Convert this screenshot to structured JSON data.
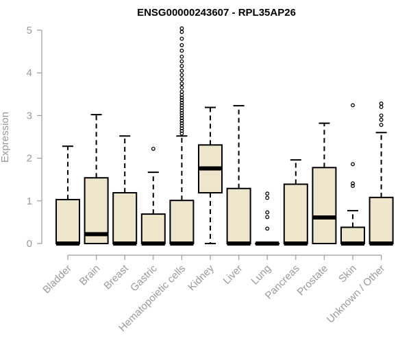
{
  "chart_data": {
    "type": "box",
    "title": "ENSG00000243607 - RPL35AP26",
    "ylabel": "Expression",
    "xlabel": "",
    "ylim": [
      0,
      5
    ],
    "yticks": [
      0,
      1,
      2,
      3,
      4,
      5
    ],
    "box_color": "#ede6cc",
    "categories": [
      "Bladder",
      "Brain",
      "Breast",
      "Gastric",
      "Hematopoietic cells",
      "Kidney",
      "Liver",
      "Lung",
      "Pancreas",
      "Prostate",
      "Skin",
      "Unknown / Other"
    ],
    "boxes": [
      {
        "category": "Bladder",
        "whisker_low": 0,
        "q1": 0,
        "median": 0,
        "q3": 1.03,
        "whisker_high": 2.28,
        "outliers": []
      },
      {
        "category": "Brain",
        "whisker_low": 0,
        "q1": 0,
        "median": 0.22,
        "q3": 1.54,
        "whisker_high": 3.02,
        "outliers": []
      },
      {
        "category": "Breast",
        "whisker_low": 0,
        "q1": 0,
        "median": 0,
        "q3": 1.19,
        "whisker_high": 2.52,
        "outliers": []
      },
      {
        "category": "Gastric",
        "whisker_low": 0,
        "q1": 0,
        "median": 0,
        "q3": 0.69,
        "whisker_high": 1.67,
        "outliers": [
          2.22
        ]
      },
      {
        "category": "Hematopoietic cells",
        "whisker_low": 0,
        "q1": 0,
        "median": 0,
        "q3": 1.01,
        "whisker_high": 2.52,
        "outliers": [
          2.58,
          2.64,
          2.7,
          2.76,
          2.82,
          2.88,
          2.94,
          3.0,
          3.06,
          3.12,
          3.18,
          3.24,
          3.3,
          3.36,
          3.42,
          3.48,
          3.56,
          3.66,
          3.75,
          3.85,
          3.95,
          4.05,
          4.16,
          4.27,
          4.38,
          4.52,
          4.65,
          4.8,
          4.96,
          5.04
        ]
      },
      {
        "category": "Kidney",
        "whisker_low": 0,
        "q1": 1.19,
        "median": 1.76,
        "q3": 2.31,
        "whisker_high": 3.19,
        "outliers": []
      },
      {
        "category": "Liver",
        "whisker_low": 0,
        "q1": 0,
        "median": 0,
        "q3": 1.29,
        "whisker_high": 3.23,
        "outliers": []
      },
      {
        "category": "Lung",
        "whisker_low": 0,
        "q1": 0,
        "median": 0,
        "q3": 0,
        "whisker_high": 0,
        "outliers": [
          0.35,
          0.62,
          0.73,
          1.07,
          1.17
        ]
      },
      {
        "category": "Pancreas",
        "whisker_low": 0,
        "q1": 0,
        "median": 0,
        "q3": 1.39,
        "whisker_high": 1.96,
        "outliers": []
      },
      {
        "category": "Prostate",
        "whisker_low": 0,
        "q1": 0,
        "median": 0.61,
        "q3": 1.78,
        "whisker_high": 2.82,
        "outliers": []
      },
      {
        "category": "Skin",
        "whisker_low": 0,
        "q1": 0,
        "median": 0,
        "q3": 0.38,
        "whisker_high": 0.77,
        "outliers": [
          1.35,
          1.41,
          1.86,
          3.24
        ]
      },
      {
        "category": "Unknown / Other",
        "whisker_low": 0,
        "q1": 0,
        "median": 0,
        "q3": 1.08,
        "whisker_high": 2.6,
        "outliers": [
          2.78,
          2.9,
          3.0,
          3.2,
          3.28
        ]
      }
    ]
  }
}
